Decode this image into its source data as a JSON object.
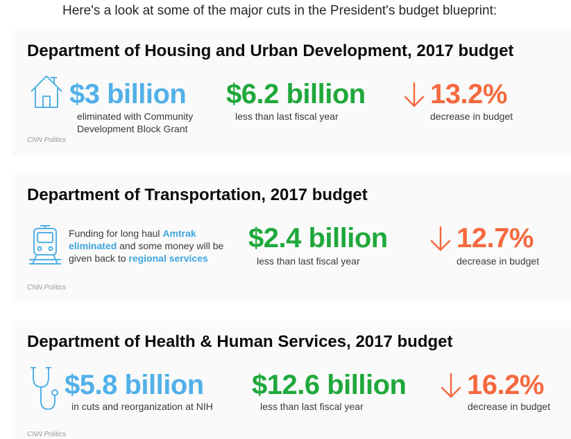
{
  "intro": "Here's a look at some of the major cuts in the President's budget blueprint:",
  "colors": {
    "blue": "#52b0e8",
    "green": "#1fa83b",
    "orange": "#f5693f"
  },
  "sections": [
    {
      "title": "Department of Housing and Urban Development, 2017 budget",
      "icon": "house-icon",
      "stat1": {
        "value": "$3 billion",
        "label": "eliminated with Community Development Block Grant"
      },
      "stat2": {
        "value": "$6.2 billion",
        "label": "less than last fiscal year"
      },
      "stat3": {
        "value": "13.2%",
        "label": "decrease in budget",
        "arrow": "down-arrow-icon"
      },
      "source": "CNN Politics"
    },
    {
      "title": "Department of Transportation, 2017 budget",
      "icon": "train-icon",
      "description": {
        "part1": "Funding for long haul ",
        "highlight1": "Amtrak eliminated",
        "part2": " and some money will be given back to ",
        "highlight2": "regional services"
      },
      "stat2": {
        "value": "$2.4 billion",
        "label": "less than last fiscal year"
      },
      "stat3": {
        "value": "12.7%",
        "label": "decrease in budget",
        "arrow": "down-arrow-icon"
      },
      "source": "CNN Politics"
    },
    {
      "title": "Department of Health & Human Services, 2017 budget",
      "icon": "stethoscope-icon",
      "stat1": {
        "value": "$5.8 billion",
        "label": "in cuts and reorganization at NIH"
      },
      "stat2": {
        "value": "$12.6 billion",
        "label": "less than last fiscal year"
      },
      "stat3": {
        "value": "16.2%",
        "label": "decrease in budget",
        "arrow": "down-arrow-icon"
      },
      "source": "CNN Politics"
    }
  ]
}
